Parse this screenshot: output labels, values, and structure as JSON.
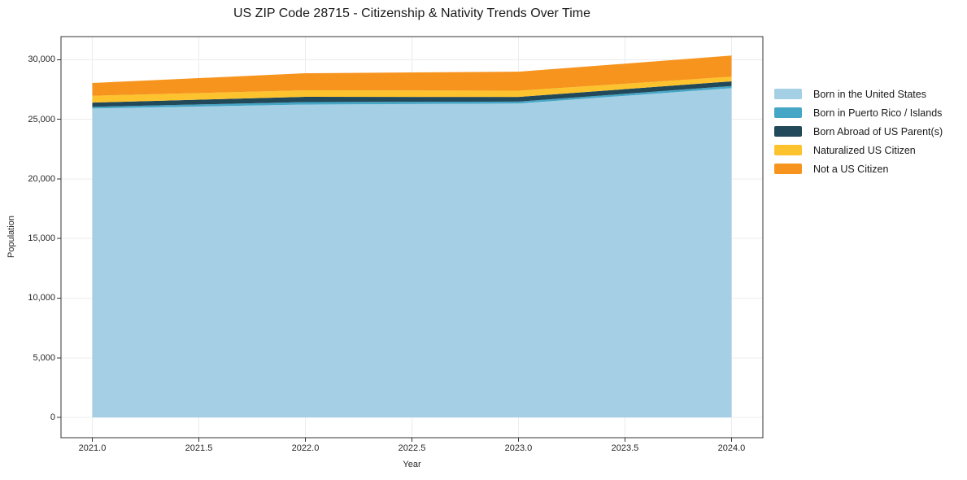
{
  "chart_data": {
    "type": "area",
    "stacked": true,
    "title": "US ZIP Code 28715 - Citizenship & Nativity Trends Over Time",
    "xlabel": "Year",
    "ylabel": "Population",
    "x": [
      2021,
      2022,
      2023,
      2024
    ],
    "series": [
      {
        "name": "Born in the United States",
        "color": "#a4cfe5",
        "values": [
          25900,
          26230,
          26320,
          27610
        ]
      },
      {
        "name": "Born in Puerto Rico / Islands",
        "color": "#46a6c6",
        "values": [
          140,
          210,
          160,
          180
        ]
      },
      {
        "name": "Born Abroad of US Parent(s)",
        "color": "#22495a",
        "values": [
          360,
          440,
          390,
          390
        ]
      },
      {
        "name": "Naturalized US Citizen",
        "color": "#fdc32e",
        "values": [
          570,
          550,
          520,
          390
        ]
      },
      {
        "name": "Not a US Citizen",
        "color": "#f7941e",
        "values": [
          1070,
          1430,
          1600,
          1770
        ]
      }
    ],
    "totals_by_year": [
      28040,
      28860,
      28990,
      30340
    ],
    "xlim": [
      2020.853,
      2024.147
    ],
    "ylim": [
      -1700,
      31930
    ],
    "xticks": {
      "values": [
        2021,
        2021.5,
        2022,
        2022.5,
        2023,
        2023.5,
        2024
      ],
      "labels": [
        "2021.0",
        "2021.5",
        "2022.0",
        "2022.5",
        "2023.0",
        "2023.5",
        "2024.0"
      ]
    },
    "yticks": {
      "values": [
        0,
        5000,
        10000,
        15000,
        20000,
        25000,
        30000
      ],
      "labels": [
        "0",
        "5,000",
        "10,000",
        "15,000",
        "20,000",
        "25,000",
        "30,000"
      ]
    },
    "grid": true,
    "legend_position": "outside-right"
  },
  "colors": {
    "grid": "#ececec",
    "spine": "#333333",
    "text": "#262626",
    "title_text": "#1a1a1a",
    "background": "#ffffff"
  }
}
